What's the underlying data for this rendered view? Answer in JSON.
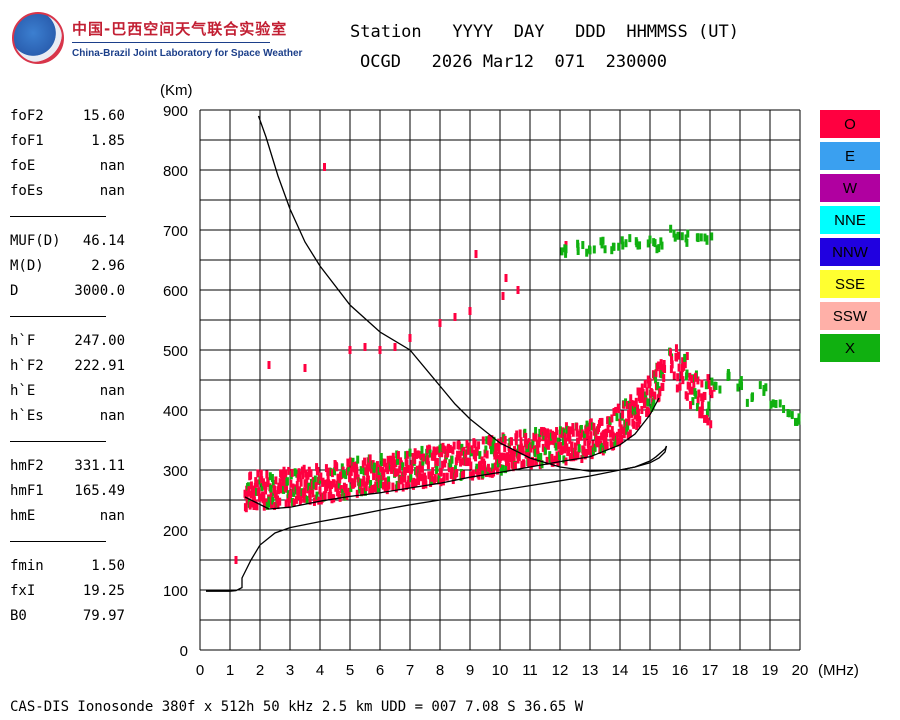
{
  "logo": {
    "cn": "中国-巴西空间天气联合实验室",
    "en": "China-Brazil Joint Laboratory for Space Weather"
  },
  "header": {
    "line1": "Station   YYYY  DAY   DDD  HHMMSS (UT)",
    "line2": "OCGD   2026 Mar12  071  230000"
  },
  "params": [
    [
      {
        "label": "foF2",
        "value": "15.60"
      },
      {
        "label": "foF1",
        "value": "1.85"
      },
      {
        "label": "foE",
        "value": "nan"
      },
      {
        "label": "foEs",
        "value": "nan"
      }
    ],
    [
      {
        "label": "MUF(D)",
        "value": "46.14"
      },
      {
        "label": "M(D)",
        "value": "2.96"
      },
      {
        "label": "D",
        "value": "3000.0"
      }
    ],
    [
      {
        "label": "h`F",
        "value": "247.00"
      },
      {
        "label": "h`F2",
        "value": "222.91"
      },
      {
        "label": "h`E",
        "value": "nan"
      },
      {
        "label": "h`Es",
        "value": "nan"
      }
    ],
    [
      {
        "label": "hmF2",
        "value": "331.11"
      },
      {
        "label": "hmF1",
        "value": "165.49"
      },
      {
        "label": "hmE",
        "value": "nan"
      }
    ],
    [
      {
        "label": "fmin",
        "value": "1.50"
      },
      {
        "label": "fxI",
        "value": "19.25"
      },
      {
        "label": "B0",
        "value": "79.97"
      }
    ]
  ],
  "legend": [
    {
      "label": "O",
      "color": "#ff0040"
    },
    {
      "label": "E",
      "color": "#3aa0f0"
    },
    {
      "label": "W",
      "color": "#b000a0"
    },
    {
      "label": "NNE",
      "color": "#00ffff"
    },
    {
      "label": "NNW",
      "color": "#2000e0"
    },
    {
      "label": "SSE",
      "color": "#ffff30"
    },
    {
      "label": "SSW",
      "color": "#ffb0a8"
    },
    {
      "label": "X",
      "color": "#10b010"
    }
  ],
  "footer": "CAS-DIS Ionosonde 380f x 512h 50 kHz 2.5 km UDD = 007 7.08 S 36.65 W",
  "chart_data": {
    "type": "scatter",
    "title": "",
    "xlabel": "(MHz)",
    "ylabel": "(Km)",
    "xlim": [
      0,
      20
    ],
    "ylim": [
      0,
      900
    ],
    "xticks": [
      0,
      1,
      2,
      3,
      4,
      5,
      6,
      7,
      8,
      9,
      10,
      11,
      12,
      13,
      14,
      15,
      16,
      17,
      18,
      19,
      20
    ],
    "yticks": [
      0,
      100,
      200,
      300,
      400,
      500,
      600,
      700,
      800,
      900
    ],
    "grid": true,
    "series": [
      {
        "name": "O-trace band",
        "color": "#ff0040",
        "band": [
          [
            1.5,
            255
          ],
          [
            2,
            262
          ],
          [
            3,
            265
          ],
          [
            4,
            272
          ],
          [
            5,
            280
          ],
          [
            6,
            287
          ],
          [
            7,
            295
          ],
          [
            8,
            303
          ],
          [
            9,
            310
          ],
          [
            10,
            320
          ],
          [
            11,
            328
          ],
          [
            12,
            335
          ],
          [
            13,
            345
          ],
          [
            13.5,
            355
          ],
          [
            14,
            370
          ],
          [
            14.5,
            390
          ],
          [
            15,
            420
          ],
          [
            15.5,
            460
          ]
        ],
        "spread": 30
      },
      {
        "name": "O-trace upper",
        "color": "#ff0040",
        "x": [
          15.8,
          16,
          16.2,
          16.4,
          16.6,
          16.8,
          17
        ],
        "y": [
          480,
          470,
          455,
          440,
          430,
          420,
          410
        ],
        "spread": 35
      },
      {
        "name": "O-trace second hop",
        "color": "#ff0040",
        "x": [
          4.15,
          5,
          5.5,
          6,
          6.5,
          7,
          8,
          8.5,
          9,
          10.2,
          10.6,
          12.2
        ],
        "y": [
          805,
          500,
          505,
          500,
          505,
          520,
          545,
          555,
          565,
          620,
          600,
          675
        ]
      },
      {
        "name": "X-trace upper",
        "color": "#10b010",
        "x": [
          12.2,
          12.6,
          13,
          13.4,
          13.8,
          14.2,
          14.6,
          15,
          15.4,
          15.8,
          16.2,
          16.6,
          16.9
        ],
        "y": [
          668,
          672,
          666,
          676,
          672,
          678,
          674,
          684,
          674,
          694,
          686,
          688,
          682
        ]
      },
      {
        "name": "X-trace tail",
        "color": "#10b010",
        "x": [
          17.2,
          17.6,
          18,
          18.4,
          18.8,
          19.2,
          19.6,
          19.9
        ],
        "y": [
          440,
          455,
          445,
          420,
          435,
          410,
          395,
          380
        ]
      },
      {
        "name": "Cusp points",
        "color": "#ff0040",
        "x": [
          2.3,
          3.5,
          1.2,
          9.2,
          10.1
        ],
        "y": [
          475,
          470,
          150,
          660,
          590
        ]
      }
    ],
    "lines": [
      {
        "name": "True height profile",
        "color": "#000",
        "x": [
          0.2,
          0.5,
          1,
          1.2,
          1.4,
          1.4,
          1.5,
          1.7,
          2,
          2.5,
          3,
          4,
          5,
          6,
          7,
          8,
          9,
          10,
          11,
          12,
          13,
          14,
          14.5,
          15,
          15.3,
          15.5,
          15.55
        ],
        "y": [
          98,
          98,
          98,
          99,
          104,
          120,
          130,
          150,
          175,
          195,
          204,
          214,
          223,
          233,
          242,
          250,
          258,
          266,
          274,
          282,
          290,
          300,
          305,
          312,
          320,
          330,
          340
        ]
      },
      {
        "name": "Virtual height model",
        "color": "#000",
        "x": [
          1.95,
          2.2,
          2.6,
          3,
          3.5,
          4,
          5,
          6,
          7,
          8,
          8.5,
          9,
          10,
          11,
          12,
          13,
          14,
          14.5,
          15,
          15.2,
          15.5,
          15.55
        ],
        "y": [
          890,
          855,
          790,
          735,
          680,
          640,
          575,
          530,
          500,
          440,
          410,
          385,
          345,
          320,
          305,
          298,
          300,
          305,
          315,
          322,
          335,
          340
        ]
      },
      {
        "name": "Measured trace centre",
        "color": "#000",
        "x": [
          1.5,
          2.3,
          3,
          4,
          5,
          6,
          7,
          8,
          9,
          10,
          11,
          12,
          13,
          14,
          14.5,
          15,
          15.3
        ],
        "y": [
          255,
          235,
          238,
          248,
          256,
          262,
          270,
          278,
          288,
          296,
          305,
          314,
          322,
          342,
          360,
          392,
          420
        ]
      }
    ]
  }
}
